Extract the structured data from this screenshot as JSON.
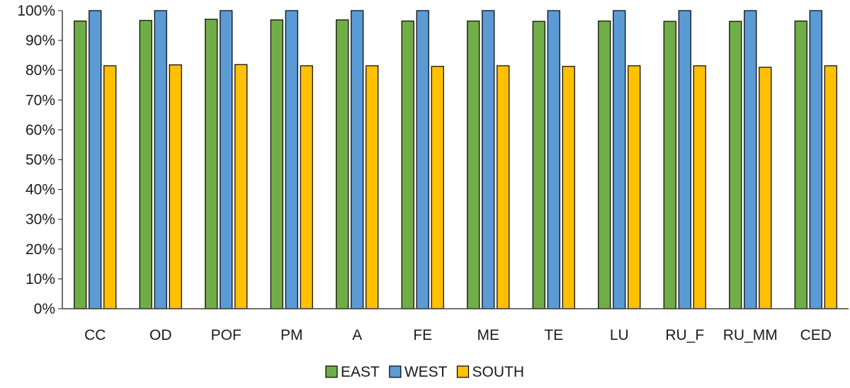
{
  "chart_data": {
    "type": "bar",
    "title": "",
    "xlabel": "",
    "ylabel": "",
    "categories": [
      "CC",
      "OD",
      "POF",
      "PM",
      "A",
      "FE",
      "ME",
      "TE",
      "LU",
      "RU_F",
      "RU_MM",
      "CED"
    ],
    "series": [
      {
        "name": "EAST",
        "color": "#70ad47",
        "values": [
          96.5,
          96.7,
          97.1,
          96.9,
          96.9,
          96.5,
          96.5,
          96.4,
          96.5,
          96.4,
          96.4,
          96.5
        ]
      },
      {
        "name": "WEST",
        "color": "#5b9bd5",
        "values": [
          100,
          100,
          100,
          100,
          100,
          100,
          100,
          100,
          100,
          100,
          100,
          100
        ]
      },
      {
        "name": "SOUTH",
        "color": "#ffc000",
        "values": [
          81.5,
          81.8,
          81.9,
          81.5,
          81.5,
          81.3,
          81.5,
          81.3,
          81.5,
          81.5,
          81.0,
          81.5
        ]
      }
    ],
    "ylim": [
      0,
      100
    ],
    "yticks": [
      0,
      10,
      20,
      30,
      40,
      50,
      60,
      70,
      80,
      90,
      100
    ],
    "ytick_labels": [
      "0%",
      "10%",
      "20%",
      "30%",
      "40%",
      "50%",
      "60%",
      "70%",
      "80%",
      "90%",
      "100%"
    ],
    "grid": false,
    "legend_position": "bottom-center"
  }
}
